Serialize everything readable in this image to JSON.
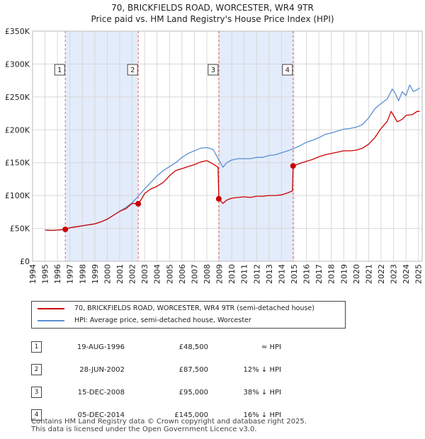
{
  "title": "70, BRICKFIELDS ROAD, WORCESTER, WR4 9TR",
  "subtitle": "Price paid vs. HM Land Registry's House Price Index (HPI)",
  "colors": {
    "property": "#cc0000",
    "hpi": "#5b8fd4",
    "shade": "#e3ecfb",
    "vline": "#e06060"
  },
  "chart_data": {
    "type": "line",
    "x_range": [
      1994,
      2025.3
    ],
    "ylim": [
      0,
      350000
    ],
    "y_ticks": [
      0,
      50000,
      100000,
      150000,
      200000,
      250000,
      300000,
      350000
    ],
    "y_tick_labels": [
      "£0",
      "£50K",
      "£100K",
      "£150K",
      "£200K",
      "£250K",
      "£300K",
      "£350K"
    ],
    "x_ticks": [
      1994,
      1995,
      1996,
      1997,
      1998,
      1999,
      2000,
      2001,
      2002,
      2003,
      2004,
      2005,
      2006,
      2007,
      2008,
      2009,
      2010,
      2011,
      2012,
      2013,
      2014,
      2015,
      2016,
      2017,
      2018,
      2019,
      2020,
      2021,
      2022,
      2023,
      2024,
      2025
    ],
    "x_tick_labels": [
      "1994",
      "1995",
      "1996",
      "1997",
      "1998",
      "1999",
      "2000",
      "2001",
      "2002",
      "2003",
      "2004",
      "2005",
      "2006",
      "2007",
      "2008",
      "2009",
      "2010",
      "2011",
      "2012",
      "2013",
      "2014",
      "2015",
      "2016",
      "2017",
      "2018",
      "2019",
      "2020",
      "2021",
      "2022",
      "2023",
      "2024",
      "2025"
    ],
    "grid": true,
    "shaded_ranges": [
      [
        1996.63,
        2002.49
      ],
      [
        2008.96,
        2014.93
      ]
    ],
    "series": [
      {
        "name": "70, BRICKFIELDS ROAD, WORCESTER, WR4 9TR (semi-detached house)",
        "x": [
          1995.0,
          1995.5,
          1996.0,
          1996.63,
          1997.0,
          1997.5,
          1998.0,
          1998.5,
          1999.0,
          1999.5,
          2000.0,
          2000.5,
          2001.0,
          2001.5,
          2002.0,
          2002.49,
          2002.8,
          2003.0,
          2003.5,
          2004.0,
          2004.5,
          2005.0,
          2005.5,
          2006.0,
          2006.5,
          2007.0,
          2007.5,
          2008.0,
          2008.5,
          2008.9,
          2008.96,
          2009.3,
          2009.6,
          2010.0,
          2010.5,
          2011.0,
          2011.5,
          2012.0,
          2012.5,
          2013.0,
          2013.5,
          2014.0,
          2014.5,
          2014.88,
          2014.93,
          2015.5,
          2016.0,
          2016.5,
          2017.0,
          2017.5,
          2018.0,
          2018.5,
          2019.0,
          2019.5,
          2020.0,
          2020.5,
          2021.0,
          2021.5,
          2022.0,
          2022.5,
          2022.8,
          2023.0,
          2023.3,
          2023.7,
          2024.0,
          2024.5,
          2024.9,
          2025.1
        ],
        "values": [
          47500,
          47000,
          47500,
          48500,
          51000,
          52500,
          54000,
          55500,
          57000,
          60000,
          64000,
          70000,
          76000,
          80000,
          88000,
          87500,
          96000,
          103000,
          110000,
          114000,
          120000,
          130000,
          138000,
          141000,
          144000,
          147000,
          151000,
          153000,
          148000,
          143000,
          95000,
          88000,
          93000,
          96000,
          97000,
          98000,
          97000,
          99000,
          99000,
          100000,
          100000,
          101000,
          104000,
          107000,
          145000,
          149000,
          152000,
          155000,
          159000,
          162000,
          164000,
          166000,
          168000,
          168000,
          169000,
          172000,
          178000,
          188000,
          202000,
          213000,
          228000,
          222000,
          212000,
          216000,
          222000,
          223000,
          228000,
          228000
        ]
      },
      {
        "name": "HPI: Average price, semi-detached house, Worcester",
        "x": [
          1995.0,
          1995.5,
          1996.0,
          1996.63,
          1997.0,
          1997.5,
          1998.0,
          1998.5,
          1999.0,
          1999.5,
          2000.0,
          2000.5,
          2001.0,
          2001.5,
          2002.0,
          2002.49,
          2003.0,
          2003.5,
          2004.0,
          2004.5,
          2005.0,
          2005.5,
          2006.0,
          2006.5,
          2007.0,
          2007.5,
          2008.0,
          2008.5,
          2009.0,
          2009.3,
          2009.6,
          2010.0,
          2010.5,
          2011.0,
          2011.5,
          2012.0,
          2012.5,
          2013.0,
          2013.5,
          2014.0,
          2014.5,
          2014.93,
          2015.5,
          2016.0,
          2016.5,
          2017.0,
          2017.5,
          2018.0,
          2018.5,
          2019.0,
          2019.5,
          2020.0,
          2020.5,
          2021.0,
          2021.5,
          2022.0,
          2022.5,
          2022.9,
          2023.1,
          2023.4,
          2023.7,
          2024.0,
          2024.3,
          2024.6,
          2025.0,
          2025.1
        ],
        "values": [
          47500,
          47000,
          47500,
          48500,
          51000,
          52500,
          54000,
          55500,
          57000,
          60000,
          64000,
          70000,
          76000,
          82000,
          89000,
          99000,
          110000,
          120000,
          130000,
          138000,
          144000,
          150000,
          158000,
          164000,
          168000,
          172000,
          173000,
          170000,
          153000,
          143000,
          150000,
          154000,
          156000,
          156000,
          156000,
          158000,
          158000,
          161000,
          162000,
          165000,
          168000,
          171000,
          176000,
          181000,
          184000,
          188000,
          193000,
          195000,
          198000,
          201000,
          202000,
          204000,
          208000,
          218000,
          232000,
          240000,
          247000,
          262000,
          257000,
          244000,
          258000,
          252000,
          268000,
          258000,
          262000,
          264000
        ]
      }
    ],
    "transactions": [
      {
        "label": "1",
        "x": 1996.63,
        "value": 48500
      },
      {
        "label": "2",
        "x": 2002.49,
        "value": 87500
      },
      {
        "label": "3",
        "x": 2008.96,
        "value": 95000
      },
      {
        "label": "4",
        "x": 2014.93,
        "value": 145000
      }
    ]
  },
  "legend": {
    "property": "70, BRICKFIELDS ROAD, WORCESTER, WR4 9TR (semi-detached house)",
    "hpi": "HPI: Average price, semi-detached house, Worcester"
  },
  "sales": [
    {
      "num": "1",
      "date": "19-AUG-1996",
      "price": "£48,500",
      "hpi": "≈ HPI"
    },
    {
      "num": "2",
      "date": "28-JUN-2002",
      "price": "£87,500",
      "hpi": "12% ↓ HPI"
    },
    {
      "num": "3",
      "date": "15-DEC-2008",
      "price": "£95,000",
      "hpi": "38% ↓ HPI"
    },
    {
      "num": "4",
      "date": "05-DEC-2014",
      "price": "£145,000",
      "hpi": "16% ↓ HPI"
    }
  ],
  "footer": {
    "line1": "Contains HM Land Registry data © Crown copyright and database right 2025.",
    "line2": "This data is licensed under the Open Government Licence v3.0."
  }
}
